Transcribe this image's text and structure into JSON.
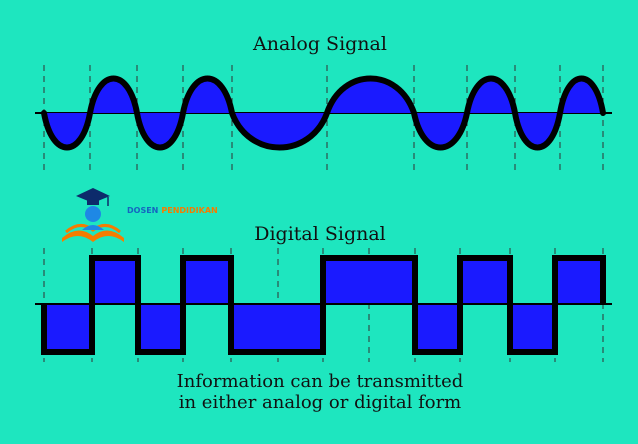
{
  "analog": {
    "title": "Analog Signal"
  },
  "digital": {
    "title": "Digital Signal"
  },
  "caption": {
    "line1": "Information can be transmitted",
    "line2": "in either analog or digital form"
  },
  "logo": {
    "word1": "DOSEN",
    "word2": "PENDIDIKAN"
  },
  "colors": {
    "background": "#1ee6bf",
    "fill": "#1a1aff",
    "stroke": "#000000",
    "logo_blue": "#1565c0",
    "logo_orange": "#f57c00"
  }
}
